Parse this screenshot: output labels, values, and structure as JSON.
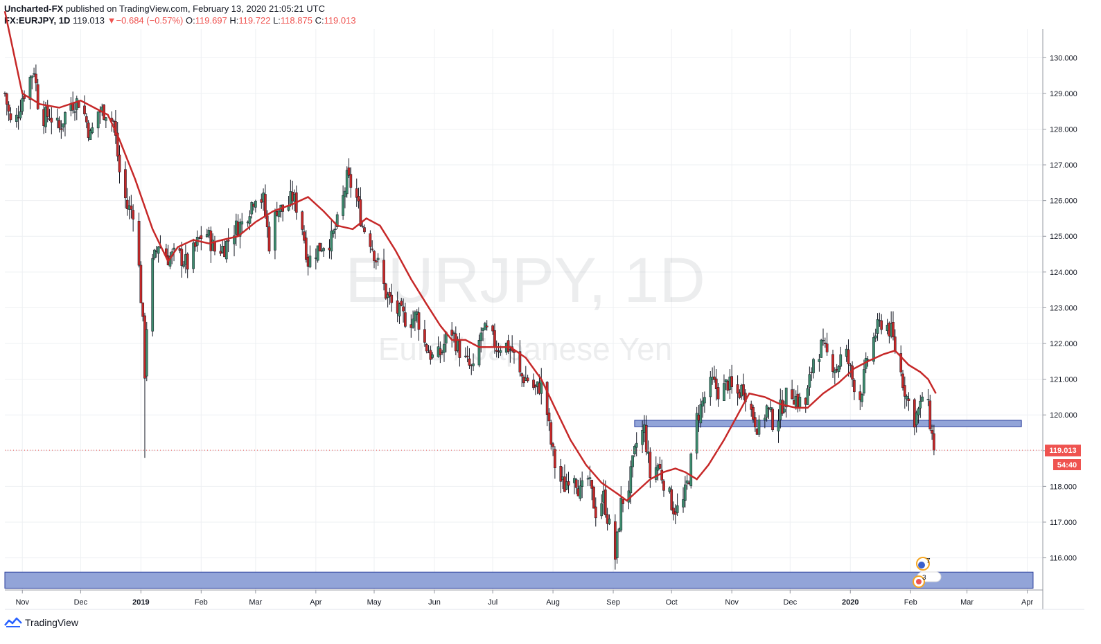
{
  "header": {
    "publisher": "Uncharted-FX",
    "published_text": "published on TradingView.com, February 13, 2020 21:05:21 UTC",
    "symbol": "FX:EURJPY, 1D",
    "last": "119.013",
    "change": "−0.684 (−0.57%)",
    "o_label": "O:",
    "o": "119.697",
    "h_label": "H:",
    "h": "119.722",
    "l_label": "L:",
    "l": "118.875",
    "c": "119.013"
  },
  "watermark": {
    "title": "EURJPY, 1D",
    "subtitle": "Euro / Japanese Yen"
  },
  "price_tag": {
    "value": "119.013",
    "countdown": "54:40"
  },
  "event_badges": [
    "7",
    "3"
  ],
  "footer": {
    "brand": "TradingView"
  },
  "colors": {
    "up": "#26a69a",
    "down": "#ef5350",
    "wick": "#131722",
    "up_body": "#3d8c6e",
    "down_body": "#c62828",
    "ma": "#c62828",
    "zone_fill": "#8c9fd6",
    "zone_stroke": "#2a3e9c",
    "tag": "#ef5350"
  },
  "chart_data": {
    "type": "candlestick",
    "title": "EURJPY, 1D",
    "subtitle": "Euro / Japanese Yen",
    "ylim": [
      115.1,
      130.8
    ],
    "y_ticks": [
      116,
      117,
      118,
      119,
      120,
      121,
      122,
      123,
      124,
      125,
      126,
      127,
      128,
      129,
      130
    ],
    "y_tick_labels": [
      "116.000",
      "117.000",
      "118.000",
      "119.000",
      "120.000",
      "121.000",
      "122.000",
      "123.000",
      "124.000",
      "125.000",
      "126.000",
      "127.000",
      "128.000",
      "129.000",
      "130.000"
    ],
    "x_start": "2018-10-23",
    "x_end": "2020-04-09",
    "x_ticks": [
      {
        "date": "2018-11-01",
        "label": "Nov"
      },
      {
        "date": "2018-12-01",
        "label": "Dec"
      },
      {
        "date": "2019-01-01",
        "label": "2019"
      },
      {
        "date": "2019-02-01",
        "label": "Feb"
      },
      {
        "date": "2019-03-01",
        "label": "Mar"
      },
      {
        "date": "2019-04-01",
        "label": "Apr"
      },
      {
        "date": "2019-05-01",
        "label": "May"
      },
      {
        "date": "2019-06-01",
        "label": "Jun"
      },
      {
        "date": "2019-07-01",
        "label": "Jul"
      },
      {
        "date": "2019-08-01",
        "label": "Aug"
      },
      {
        "date": "2019-09-01",
        "label": "Sep"
      },
      {
        "date": "2019-10-01",
        "label": "Oct"
      },
      {
        "date": "2019-11-01",
        "label": "Nov"
      },
      {
        "date": "2019-12-01",
        "label": "Dec"
      },
      {
        "date": "2020-01-01",
        "label": "2020"
      },
      {
        "date": "2020-02-01",
        "label": "Feb"
      },
      {
        "date": "2020-03-01",
        "label": "Mar"
      },
      {
        "date": "2020-04-01",
        "label": "Apr"
      }
    ],
    "close_path": [
      [
        "2018-10-23",
        129.0
      ],
      [
        "2018-10-27",
        127.9
      ],
      [
        "2018-11-01",
        128.9
      ],
      [
        "2018-11-07",
        129.7
      ],
      [
        "2018-11-10",
        128.3
      ],
      [
        "2018-11-15",
        128.4
      ],
      [
        "2018-11-20",
        128.0
      ],
      [
        "2018-11-25",
        128.7
      ],
      [
        "2018-12-01",
        128.8
      ],
      [
        "2018-12-06",
        127.8
      ],
      [
        "2018-12-10",
        128.5
      ],
      [
        "2018-12-14",
        128.5
      ],
      [
        "2018-12-18",
        128.2
      ],
      [
        "2018-12-21",
        126.8
      ],
      [
        "2018-12-25",
        125.8
      ],
      [
        "2018-12-29",
        125.7
      ],
      [
        "2019-01-02",
        122.5
      ],
      [
        "2019-01-03",
        121.2
      ],
      [
        "2019-01-05",
        123.8
      ],
      [
        "2019-01-10",
        124.8
      ],
      [
        "2019-01-15",
        124.4
      ],
      [
        "2019-01-20",
        124.5
      ],
      [
        "2019-01-25",
        124.2
      ],
      [
        "2019-01-30",
        124.8
      ],
      [
        "2019-02-03",
        125.2
      ],
      [
        "2019-02-08",
        124.6
      ],
      [
        "2019-02-13",
        124.7
      ],
      [
        "2019-02-18",
        125.2
      ],
      [
        "2019-02-23",
        125.4
      ],
      [
        "2019-03-01",
        126.2
      ],
      [
        "2019-03-05",
        126.0
      ],
      [
        "2019-03-08",
        124.8
      ],
      [
        "2019-03-12",
        125.8
      ],
      [
        "2019-03-16",
        125.7
      ],
      [
        "2019-03-20",
        126.1
      ],
      [
        "2019-03-24",
        125.6
      ],
      [
        "2019-03-28",
        124.3
      ],
      [
        "2019-04-01",
        124.6
      ],
      [
        "2019-04-05",
        124.8
      ],
      [
        "2019-04-09",
        124.9
      ],
      [
        "2019-04-13",
        125.5
      ],
      [
        "2019-04-17",
        126.6
      ],
      [
        "2019-04-21",
        126.3
      ],
      [
        "2019-04-25",
        125.3
      ],
      [
        "2019-04-29",
        124.9
      ],
      [
        "2019-05-03",
        124.2
      ],
      [
        "2019-05-07",
        123.4
      ],
      [
        "2019-05-11",
        123.0
      ],
      [
        "2019-05-15",
        122.8
      ],
      [
        "2019-05-19",
        122.6
      ],
      [
        "2019-05-23",
        122.8
      ],
      [
        "2019-05-27",
        122.0
      ],
      [
        "2019-06-01",
        121.5
      ],
      [
        "2019-06-05",
        121.8
      ],
      [
        "2019-06-09",
        122.5
      ],
      [
        "2019-06-13",
        121.9
      ],
      [
        "2019-06-17",
        121.5
      ],
      [
        "2019-06-21",
        121.2
      ],
      [
        "2019-06-25",
        122.3
      ],
      [
        "2019-06-29",
        122.3
      ],
      [
        "2019-07-03",
        121.9
      ],
      [
        "2019-07-07",
        122.0
      ],
      [
        "2019-07-11",
        121.8
      ],
      [
        "2019-07-15",
        121.1
      ],
      [
        "2019-07-19",
        121.0
      ],
      [
        "2019-07-23",
        120.7
      ],
      [
        "2019-07-27",
        120.9
      ],
      [
        "2019-07-31",
        119.2
      ],
      [
        "2019-08-03",
        118.3
      ],
      [
        "2019-08-07",
        118.0
      ],
      [
        "2019-08-11",
        118.6
      ],
      [
        "2019-08-15",
        117.8
      ],
      [
        "2019-08-19",
        118.2
      ],
      [
        "2019-08-23",
        117.3
      ],
      [
        "2019-08-27",
        117.7
      ],
      [
        "2019-08-31",
        116.6
      ],
      [
        "2019-09-02",
        116.0
      ],
      [
        "2019-09-05",
        117.5
      ],
      [
        "2019-09-09",
        118.0
      ],
      [
        "2019-09-13",
        119.2
      ],
      [
        "2019-09-17",
        119.6
      ],
      [
        "2019-09-20",
        118.3
      ],
      [
        "2019-09-24",
        118.6
      ],
      [
        "2019-09-28",
        118.0
      ],
      [
        "2019-10-02",
        117.4
      ],
      [
        "2019-10-06",
        117.3
      ],
      [
        "2019-10-10",
        118.3
      ],
      [
        "2019-10-14",
        119.9
      ],
      [
        "2019-10-18",
        120.5
      ],
      [
        "2019-10-22",
        120.9
      ],
      [
        "2019-10-26",
        120.6
      ],
      [
        "2019-10-30",
        120.9
      ],
      [
        "2019-11-03",
        120.5
      ],
      [
        "2019-11-07",
        120.8
      ],
      [
        "2019-11-11",
        120.1
      ],
      [
        "2019-11-15",
        119.6
      ],
      [
        "2019-11-19",
        120.2
      ],
      [
        "2019-11-23",
        119.7
      ],
      [
        "2019-11-27",
        120.3
      ],
      [
        "2019-12-01",
        120.7
      ],
      [
        "2019-12-05",
        120.4
      ],
      [
        "2019-12-09",
        120.3
      ],
      [
        "2019-12-13",
        121.6
      ],
      [
        "2019-12-17",
        121.9
      ],
      [
        "2019-12-21",
        121.6
      ],
      [
        "2019-12-25",
        121.3
      ],
      [
        "2019-12-29",
        121.9
      ],
      [
        "2020-01-02",
        121.0
      ],
      [
        "2020-01-06",
        120.5
      ],
      [
        "2020-01-10",
        121.6
      ],
      [
        "2020-01-14",
        122.3
      ],
      [
        "2020-01-18",
        122.7
      ],
      [
        "2020-01-22",
        122.3
      ],
      [
        "2020-01-26",
        121.4
      ],
      [
        "2020-01-30",
        120.5
      ],
      [
        "2020-02-03",
        119.9
      ],
      [
        "2020-02-06",
        120.2
      ],
      [
        "2020-02-08",
        120.9
      ],
      [
        "2020-02-11",
        119.8
      ],
      [
        "2020-02-13",
        119.013
      ]
    ],
    "series": [
      {
        "name": "",
        "kind": "moving-average",
        "points": [
          [
            "2018-10-23",
            131.3
          ],
          [
            "2018-11-01",
            129.0
          ],
          [
            "2018-11-10",
            128.7
          ],
          [
            "2018-11-20",
            128.6
          ],
          [
            "2018-12-01",
            128.8
          ],
          [
            "2018-12-08",
            128.6
          ],
          [
            "2018-12-15",
            128.4
          ],
          [
            "2018-12-21",
            127.7
          ],
          [
            "2018-12-29",
            126.6
          ],
          [
            "2019-01-07",
            125.2
          ],
          [
            "2019-01-15",
            124.3
          ],
          [
            "2019-01-20",
            124.7
          ],
          [
            "2019-01-28",
            124.9
          ],
          [
            "2019-02-05",
            124.8
          ],
          [
            "2019-02-12",
            124.9
          ],
          [
            "2019-02-20",
            125.0
          ],
          [
            "2019-03-01",
            125.4
          ],
          [
            "2019-03-10",
            125.7
          ],
          [
            "2019-03-20",
            125.9
          ],
          [
            "2019-03-28",
            126.1
          ],
          [
            "2019-04-05",
            125.7
          ],
          [
            "2019-04-12",
            125.3
          ],
          [
            "2019-04-20",
            125.2
          ],
          [
            "2019-04-27",
            125.5
          ],
          [
            "2019-05-04",
            125.3
          ],
          [
            "2019-05-12",
            124.6
          ],
          [
            "2019-05-20",
            123.8
          ],
          [
            "2019-05-28",
            123.1
          ],
          [
            "2019-06-04",
            122.5
          ],
          [
            "2019-06-10",
            122.1
          ],
          [
            "2019-06-17",
            122.1
          ],
          [
            "2019-06-24",
            121.9
          ],
          [
            "2019-07-01",
            121.9
          ],
          [
            "2019-07-10",
            121.9
          ],
          [
            "2019-07-18",
            121.6
          ],
          [
            "2019-07-26",
            121.0
          ],
          [
            "2019-08-02",
            120.2
          ],
          [
            "2019-08-10",
            119.3
          ],
          [
            "2019-08-18",
            118.6
          ],
          [
            "2019-08-26",
            118.1
          ],
          [
            "2019-09-03",
            117.8
          ],
          [
            "2019-09-08",
            117.6
          ],
          [
            "2019-09-14",
            117.9
          ],
          [
            "2019-09-20",
            118.2
          ],
          [
            "2019-09-27",
            118.4
          ],
          [
            "2019-10-03",
            118.5
          ],
          [
            "2019-10-08",
            118.4
          ],
          [
            "2019-10-14",
            118.2
          ],
          [
            "2019-10-20",
            118.6
          ],
          [
            "2019-10-28",
            119.3
          ],
          [
            "2019-11-04",
            120.0
          ],
          [
            "2019-11-10",
            120.6
          ],
          [
            "2019-11-18",
            120.5
          ],
          [
            "2019-11-26",
            120.3
          ],
          [
            "2019-12-04",
            120.2
          ],
          [
            "2019-12-10",
            120.2
          ],
          [
            "2019-12-18",
            120.6
          ],
          [
            "2019-12-26",
            120.9
          ],
          [
            "2020-01-03",
            121.3
          ],
          [
            "2020-01-10",
            121.5
          ],
          [
            "2020-01-18",
            121.7
          ],
          [
            "2020-01-24",
            121.8
          ],
          [
            "2020-01-31",
            121.4
          ],
          [
            "2020-02-06",
            121.2
          ],
          [
            "2020-02-10",
            121.0
          ],
          [
            "2020-02-14",
            120.6
          ]
        ]
      }
    ],
    "zones": [
      {
        "date_start": "2019-09-12",
        "date_end": "2020-03-29",
        "low": 119.67,
        "high": 119.85
      },
      {
        "date_start": "2018-10-23",
        "date_end": "2020-04-04",
        "low": 115.15,
        "high": 115.6
      }
    ],
    "last_price": 119.013,
    "grid": true,
    "price_axis": "right"
  }
}
